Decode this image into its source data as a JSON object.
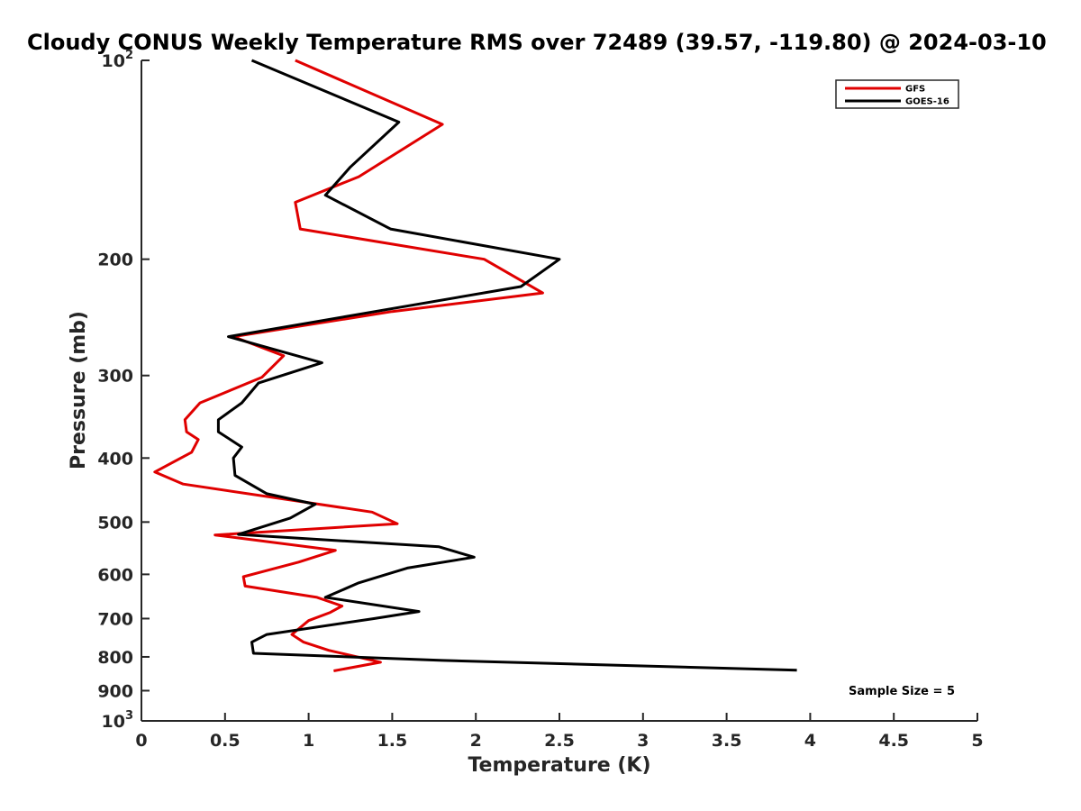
{
  "chart_data": {
    "type": "line",
    "title": "Cloudy CONUS Weekly Temperature RMS over 72489 (39.57, -119.80) @ 2024-03-10",
    "xlabel": "Temperature (K)",
    "ylabel": "Pressure (mb)",
    "xlim": [
      0,
      5
    ],
    "ylim": [
      100,
      1000
    ],
    "y_scale": "log",
    "y_reversed": true,
    "x_ticks": [
      "0",
      "0.5",
      "1",
      "1.5",
      "2",
      "2.5",
      "3",
      "3.5",
      "4",
      "4.5",
      "5"
    ],
    "y_ticks": [
      {
        "value": 100,
        "base": "10",
        "exp": "2"
      },
      {
        "value": 200,
        "label": "200"
      },
      {
        "value": 300,
        "label": "300"
      },
      {
        "value": 400,
        "label": "400"
      },
      {
        "value": 500,
        "label": "500"
      },
      {
        "value": 600,
        "label": "600"
      },
      {
        "value": 700,
        "label": "700"
      },
      {
        "value": 800,
        "label": "800"
      },
      {
        "value": 900,
        "label": "900"
      },
      {
        "value": 1000,
        "base": "10",
        "exp": "3"
      }
    ],
    "legend_position": "top-right",
    "annotation": "Sample Size = 5",
    "series": [
      {
        "name": "GFS",
        "color": "#e00000",
        "points": [
          [
            0.92,
            100
          ],
          [
            1.8,
            125
          ],
          [
            1.3,
            150
          ],
          [
            0.92,
            164
          ],
          [
            0.95,
            180
          ],
          [
            2.05,
            200
          ],
          [
            2.4,
            225
          ],
          [
            1.5,
            240
          ],
          [
            0.55,
            262
          ],
          [
            0.85,
            280
          ],
          [
            0.72,
            302
          ],
          [
            0.35,
            330
          ],
          [
            0.26,
            350
          ],
          [
            0.27,
            365
          ],
          [
            0.34,
            375
          ],
          [
            0.3,
            392
          ],
          [
            0.08,
            420
          ],
          [
            0.25,
            438
          ],
          [
            1.38,
            483
          ],
          [
            1.53,
            503
          ],
          [
            0.44,
            523
          ],
          [
            1.16,
            552
          ],
          [
            0.94,
            575
          ],
          [
            0.61,
            605
          ],
          [
            0.62,
            625
          ],
          [
            1.05,
            650
          ],
          [
            1.2,
            670
          ],
          [
            1.13,
            685
          ],
          [
            1.0,
            705
          ],
          [
            0.9,
            740
          ],
          [
            0.97,
            760
          ],
          [
            1.12,
            782
          ],
          [
            1.43,
            815
          ],
          [
            1.15,
            840
          ]
        ]
      },
      {
        "name": "GOES-16",
        "color": "#000000",
        "points": [
          [
            0.66,
            100
          ],
          [
            1.54,
            124
          ],
          [
            1.25,
            145
          ],
          [
            1.1,
            160
          ],
          [
            1.49,
            180
          ],
          [
            2.5,
            200
          ],
          [
            2.27,
            220
          ],
          [
            0.52,
            262
          ],
          [
            1.08,
            287
          ],
          [
            0.7,
            308
          ],
          [
            0.6,
            330
          ],
          [
            0.46,
            350
          ],
          [
            0.46,
            365
          ],
          [
            0.6,
            385
          ],
          [
            0.55,
            400
          ],
          [
            0.56,
            425
          ],
          [
            0.75,
            453
          ],
          [
            1.04,
            470
          ],
          [
            0.89,
            493
          ],
          [
            0.58,
            522
          ],
          [
            1.78,
            545
          ],
          [
            1.99,
            565
          ],
          [
            1.59,
            587
          ],
          [
            1.3,
            618
          ],
          [
            1.1,
            650
          ],
          [
            1.66,
            683
          ],
          [
            1.39,
            700
          ],
          [
            0.75,
            740
          ],
          [
            0.66,
            760
          ],
          [
            0.67,
            790
          ],
          [
            1.8,
            810
          ],
          [
            3.92,
            838
          ]
        ]
      }
    ]
  }
}
